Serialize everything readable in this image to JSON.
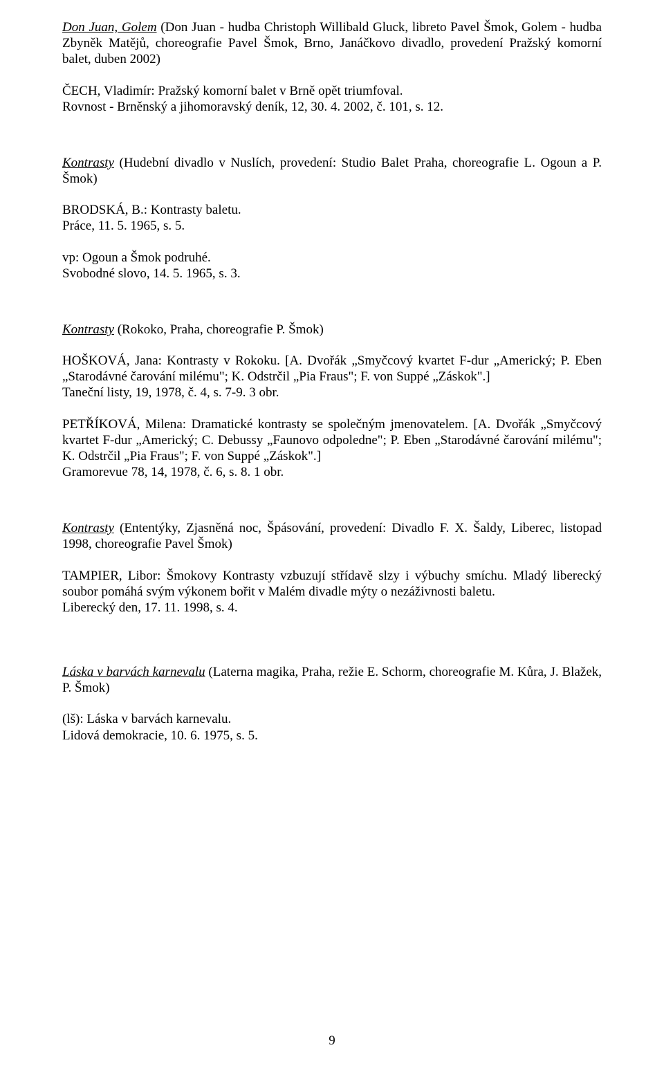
{
  "p1": {
    "title": "Don Juan, Golem",
    "rest": " (Don Juan - hudba Christoph Willibald Gluck, libreto Pavel Šmok, Golem - hudba Zbyněk Matějů, choreografie Pavel Šmok, Brno, Janáčkovo divadlo, provedení Pražský komorní balet, duben 2002)"
  },
  "p2": "ČECH, Vladimír: Pražský komorní balet v Brně opět triumfoval.",
  "p3": "Rovnost - Brněnský a jihomoravský deník, 12, 30. 4. 2002, č. 101, s. 12.",
  "p4": {
    "title": "Kontrasty",
    "rest": " (Hudební divadlo v Nuslích, provedení: Studio Balet Praha, choreografie L. Ogoun a P. Šmok)"
  },
  "p5": "BRODSKÁ, B.: Kontrasty baletu.",
  "p6": "Práce, 11. 5. 1965, s. 5.",
  "p7": "vp: Ogoun a Šmok podruhé.",
  "p8": "Svobodné slovo, 14. 5. 1965, s. 3.",
  "p9": {
    "title": "Kontrasty",
    "rest": " (Rokoko, Praha, choreografie P. Šmok)"
  },
  "p10": "HOŠKOVÁ, Jana: Kontrasty v Rokoku. [A. Dvořák „Smyčcový kvartet F-dur „Americký; P. Eben „Starodávné čarování milému\"; K. Odstrčil „Pia Fraus\"; F. von Suppé „Záskok\".]",
  "p11": "Taneční listy, 19, 1978, č. 4, s. 7-9. 3 obr.",
  "p12": "PETŘÍKOVÁ, Milena: Dramatické kontrasty se společným jmenovatelem. [A. Dvořák „Smyčcový kvartet F-dur „Americký; C. Debussy „Faunovo odpoledne\"; P. Eben „Starodávné čarování milému\"; K. Odstrčil „Pia Fraus\"; F. von Suppé „Záskok\".]",
  "p13": "Gramorevue 78, 14, 1978, č. 6, s. 8. 1 obr.",
  "p14": {
    "title": "Kontrasty",
    "rest": " (Ententýky, Zjasněná noc, Špásování, provedení: Divadlo F. X. Šaldy, Liberec, listopad 1998, choreografie Pavel Šmok)"
  },
  "p15": "TAMPIER, Libor: Šmokovy Kontrasty vzbuzují střídavě slzy i výbuchy smíchu. Mladý liberecký soubor pomáhá svým výkonem bořit v Malém divadle mýty o nezáživnosti baletu.",
  "p16": "Liberecký den, 17. 11. 1998, s. 4.",
  "p17": {
    "title": "Láska v barvách karnevalu",
    "rest": " (Laterna magika, Praha, režie E. Schorm, choreografie M. Kůra, J. Blažek, P. Šmok)"
  },
  "p18": "(lš): Láska v barvách karnevalu.",
  "p19": "Lidová demokracie, 10. 6. 1975, s. 5.",
  "pagenum": "9"
}
